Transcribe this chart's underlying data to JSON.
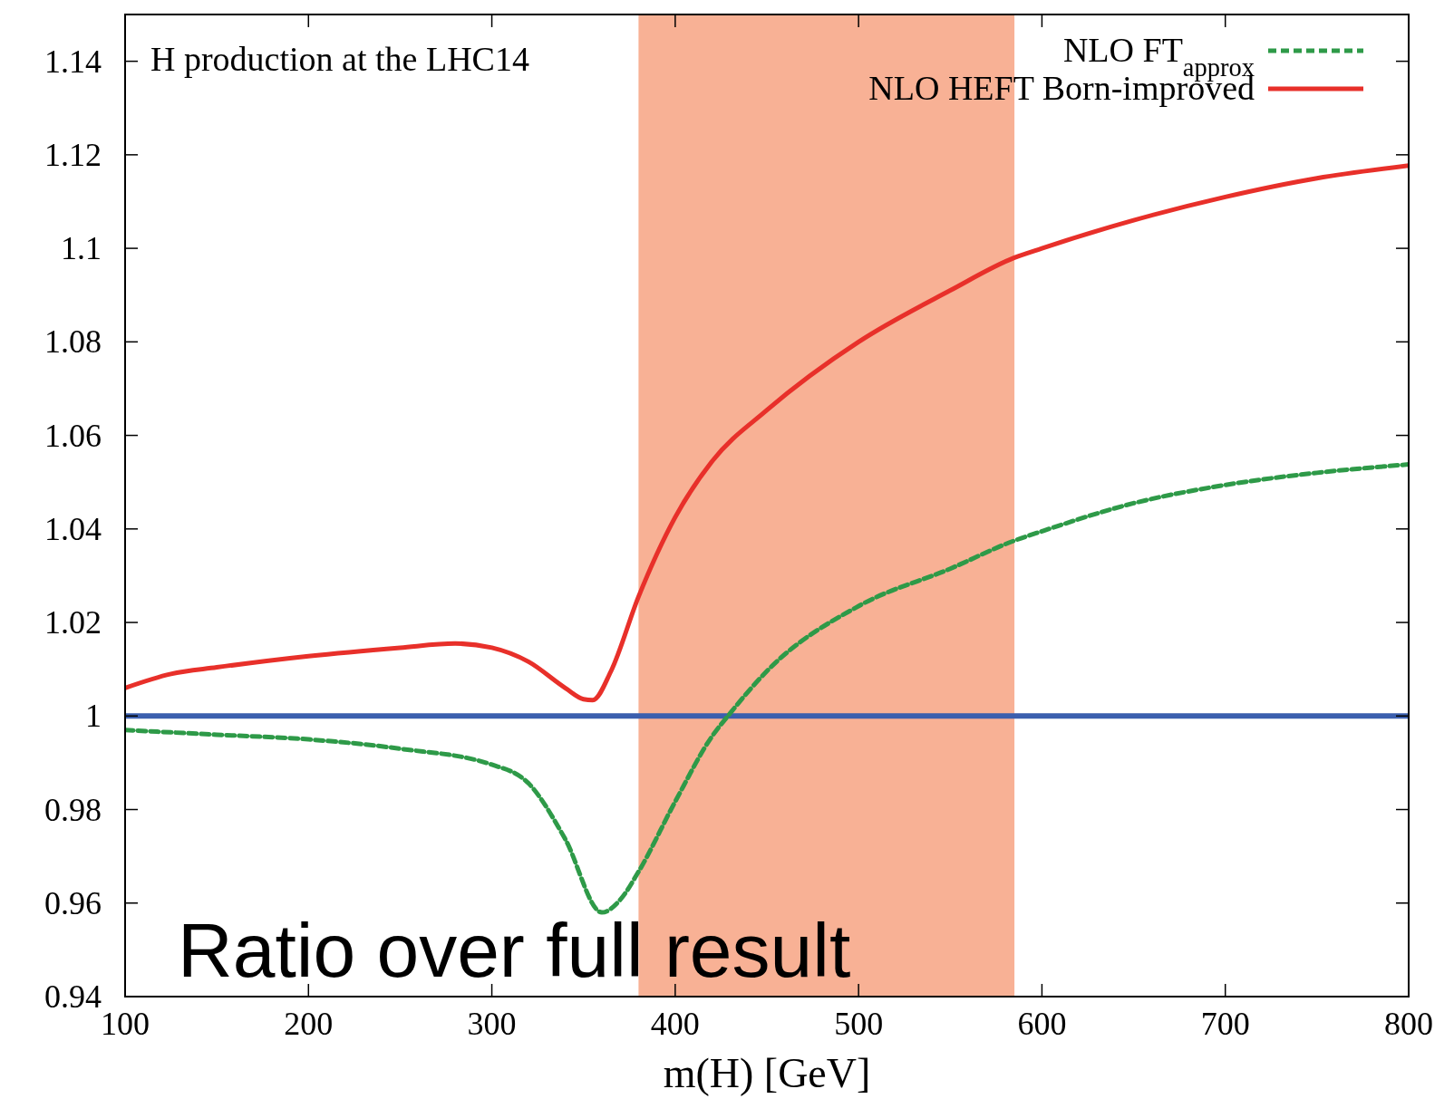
{
  "chart_data": {
    "type": "line",
    "xlabel": "m(H) [GeV]",
    "xlim": [
      100,
      800
    ],
    "xticks": [
      100,
      200,
      300,
      400,
      500,
      600,
      700,
      800
    ],
    "ylim": [
      0.94,
      1.15
    ],
    "yticks": [
      0.94,
      0.96,
      0.98,
      1,
      1.02,
      1.04,
      1.06,
      1.08,
      1.1,
      1.12,
      1.14
    ],
    "legend": "top right",
    "grid": false,
    "x": [
      100,
      125,
      150,
      200,
      250,
      280,
      300,
      320,
      340,
      350,
      355,
      365,
      380,
      400,
      420,
      450,
      500,
      550,
      585,
      600,
      650,
      700,
      750,
      800
    ],
    "series": [
      {
        "name": "NLO FT$_{approx}$",
        "color": "#2e9a48",
        "line_style": "dashed",
        "x": [
          100,
          150,
          200,
          250,
          300,
          320,
          340,
          360,
          370,
          380,
          400,
          420,
          430,
          450,
          500,
          550,
          585,
          600,
          650,
          700,
          750,
          800
        ],
        "values": [
          0.997,
          0.996,
          0.995,
          0.993,
          0.9896,
          0.9856,
          0.9737,
          0.958,
          0.9607,
          0.9667,
          0.9817,
          0.9956,
          1.0006,
          1.0096,
          1.0235,
          1.0315,
          1.0375,
          1.0395,
          1.0455,
          1.0494,
          1.052,
          1.0538
        ]
      },
      {
        "name": "NLO HEFT Born-improved",
        "color": "#e8302a",
        "line_style": "solid",
        "values": [
          1.006,
          1.009,
          1.0104,
          1.0128,
          1.0146,
          1.0155,
          1.0146,
          1.0116,
          1.006,
          1.0036,
          1.0034,
          1.0096,
          1.0255,
          1.0425,
          1.0544,
          1.0654,
          1.08,
          1.091,
          1.098,
          1.1,
          1.106,
          1.111,
          1.115,
          1.1177
        ]
      }
    ],
    "ref_lines": [
      {
        "axis": "y",
        "value": 1,
        "color": "#3b5fae"
      }
    ],
    "bands": [
      {
        "axis": "x",
        "from": 380,
        "to": 585,
        "color": "#f8b195"
      }
    ],
    "annotations": [
      "H production at the LHC14",
      "Ratio over full result"
    ]
  }
}
